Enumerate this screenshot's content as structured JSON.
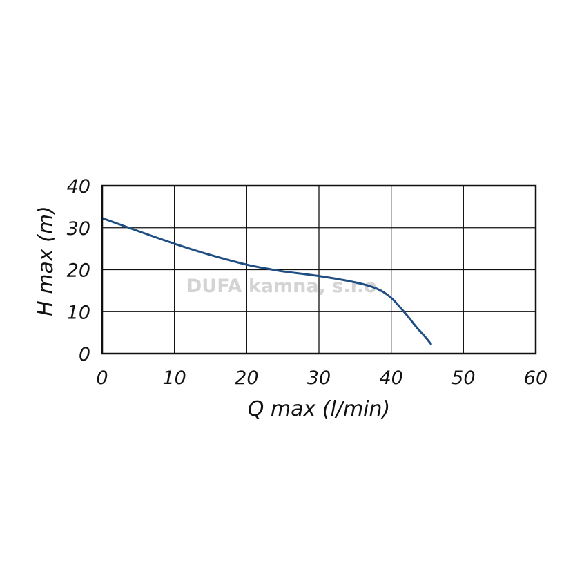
{
  "chart_data": {
    "type": "line",
    "title": "",
    "xlabel": "Q max (l/min)",
    "ylabel": "H max (m)",
    "xlim": [
      0,
      60
    ],
    "ylim": [
      0,
      40
    ],
    "xticks": [
      "0",
      "10",
      "20",
      "30",
      "40",
      "50",
      "60"
    ],
    "yticks": [
      "0",
      "10",
      "20",
      "30",
      "40"
    ],
    "grid": true,
    "legend": "none",
    "watermark": "DUFA kamna, s.r.o.",
    "series": [
      {
        "color": "#1f4e82",
        "x": [
          0,
          5,
          10,
          15,
          20,
          23,
          25,
          30,
          35,
          38,
          40,
          42,
          43.5,
          44.5,
          45.5
        ],
        "y": [
          32.3,
          29.2,
          26.2,
          23.5,
          21.2,
          20.2,
          19.6,
          18.5,
          17.0,
          15.5,
          13.3,
          9.5,
          6.3,
          4.4,
          2.3
        ]
      }
    ]
  }
}
